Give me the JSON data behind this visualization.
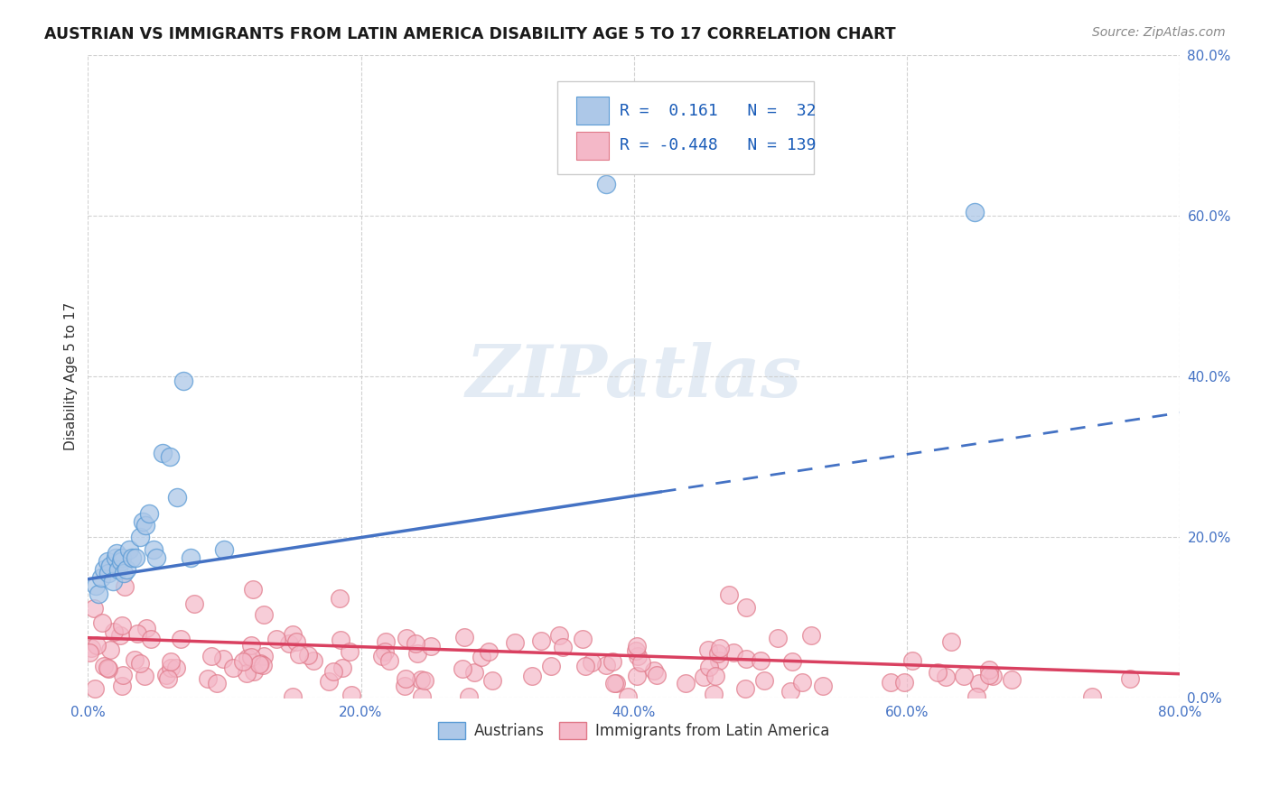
{
  "title": "AUSTRIAN VS IMMIGRANTS FROM LATIN AMERICA DISABILITY AGE 5 TO 17 CORRELATION CHART",
  "source": "Source: ZipAtlas.com",
  "ylabel": "Disability Age 5 to 17",
  "xlim": [
    0.0,
    0.8
  ],
  "ylim": [
    0.0,
    0.8
  ],
  "xticks": [
    0.0,
    0.2,
    0.4,
    0.6,
    0.8
  ],
  "yticks": [
    0.0,
    0.2,
    0.4,
    0.6,
    0.8
  ],
  "xtick_labels": [
    "0.0%",
    "20.0%",
    "40.0%",
    "60.0%",
    "80.0%"
  ],
  "ytick_labels": [
    "0.0%",
    "20.0%",
    "40.0%",
    "60.0%",
    "80.0%"
  ],
  "austrian_color": "#adc8e8",
  "austrian_edge_color": "#5b9bd5",
  "latin_color": "#f4b8c8",
  "latin_edge_color": "#e07888",
  "trend_austrian_color": "#4472c4",
  "trend_latin_color": "#d94060",
  "R_austrian": 0.161,
  "N_austrian": 32,
  "R_latin": -0.448,
  "N_latin": 139,
  "austrian_x": [
    0.006,
    0.008,
    0.01,
    0.012,
    0.014,
    0.015,
    0.016,
    0.018,
    0.02,
    0.021,
    0.022,
    0.024,
    0.025,
    0.026,
    0.028,
    0.03,
    0.032,
    0.035,
    0.038,
    0.04,
    0.042,
    0.045,
    0.048,
    0.05,
    0.055,
    0.06,
    0.065,
    0.07,
    0.075,
    0.1,
    0.38,
    0.65
  ],
  "austrian_y": [
    0.14,
    0.13,
    0.15,
    0.16,
    0.17,
    0.155,
    0.165,
    0.145,
    0.175,
    0.18,
    0.16,
    0.17,
    0.175,
    0.155,
    0.16,
    0.185,
    0.175,
    0.175,
    0.2,
    0.22,
    0.215,
    0.23,
    0.185,
    0.175,
    0.305,
    0.3,
    0.25,
    0.395,
    0.175,
    0.185,
    0.64,
    0.605
  ],
  "trend_austrian_x0": 0.0,
  "trend_austrian_y0": 0.148,
  "trend_austrian_x1": 0.8,
  "trend_austrian_y1": 0.355,
  "trend_austrian_solid_end": 0.42,
  "trend_latin_x0": 0.0,
  "trend_latin_y0": 0.075,
  "trend_latin_x1": 0.8,
  "trend_latin_y1": 0.03,
  "watermark_text": "ZIPatlas",
  "background_color": "#ffffff",
  "grid_color": "#cccccc",
  "title_fontsize": 12.5,
  "axis_label_fontsize": 11,
  "tick_fontsize": 11,
  "legend_fontsize": 12,
  "tick_color": "#4472c4",
  "source_fontsize": 10
}
